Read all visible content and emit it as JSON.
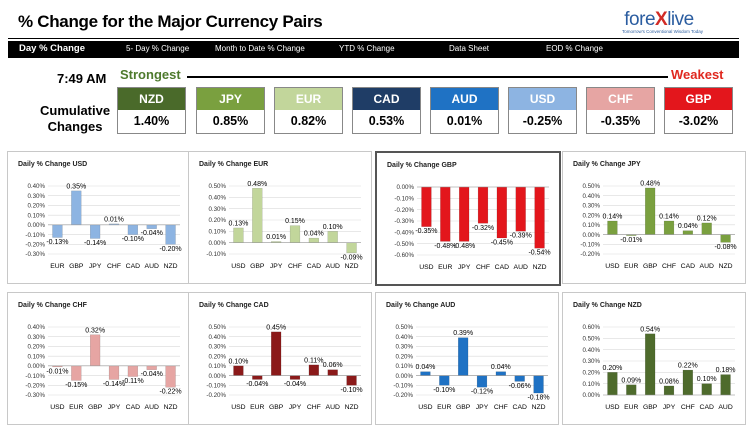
{
  "header": {
    "title": "% Change for the Major Currency Pairs",
    "logo_main_left": "fore",
    "logo_main_x": "X",
    "logo_main_right": "live",
    "logo_sub": "Tomorrow's Conventional Wisdom Today"
  },
  "nav": [
    "Day % Change",
    "5- Day % Change",
    "Month to Date % Change",
    "YTD % Change",
    "Data Sheet",
    "EOD % Change"
  ],
  "summary": {
    "time": "7:49 AM",
    "strongest": "Strongest",
    "weakest": "Weakest",
    "cumulative_line1": "Cumulative",
    "cumulative_line2": "Changes",
    "currencies": [
      {
        "code": "NZD",
        "value": "1.40%",
        "color": "#4a6a2a"
      },
      {
        "code": "JPY",
        "value": "0.85%",
        "color": "#7aa03f"
      },
      {
        "code": "EUR",
        "value": "0.82%",
        "color": "#c2d69b"
      },
      {
        "code": "CAD",
        "value": "0.53%",
        "color": "#1f3d66"
      },
      {
        "code": "AUD",
        "value": "0.01%",
        "color": "#1f72c4"
      },
      {
        "code": "USD",
        "value": "-0.25%",
        "color": "#8db4e2"
      },
      {
        "code": "CHF",
        "value": "-0.35%",
        "color": "#e6a5a3"
      },
      {
        "code": "GBP",
        "value": "-3.02%",
        "color": "#e3161c"
      }
    ]
  },
  "chart_data": [
    {
      "type": "bar",
      "title": "Daily % Change USD",
      "color": "#8db4e2",
      "categories": [
        "EUR",
        "GBP",
        "JPY",
        "CHF",
        "CAD",
        "AUD",
        "NZD"
      ],
      "values": [
        -0.13,
        0.35,
        -0.14,
        0.01,
        -0.1,
        -0.04,
        -0.2
      ],
      "labels": [
        "-0.13%",
        "0.35%",
        "-0.14%",
        "0.01%",
        "-0.10%",
        "-0.04%",
        "-0.20%"
      ],
      "ylim": [
        -0.3,
        0.4
      ],
      "step": 0.1,
      "ticks": [
        "-0.30%",
        "-0.20%",
        "-0.10%",
        "0.00%",
        "0.10%",
        "0.20%",
        "0.30%",
        "0.40%"
      ]
    },
    {
      "type": "bar",
      "title": "Daily % Change EUR",
      "color": "#c2d69b",
      "categories": [
        "USD",
        "GBP",
        "JPY",
        "CHF",
        "CAD",
        "AUD",
        "NZD"
      ],
      "values": [
        0.13,
        0.48,
        0.01,
        0.15,
        0.04,
        0.1,
        -0.09
      ],
      "labels": [
        "0.13%",
        "0.48%",
        "0.01%",
        "0.15%",
        "0.04%",
        "0.10%",
        "-0.09%"
      ],
      "ylim": [
        -0.1,
        0.5
      ],
      "step": 0.1,
      "ticks": [
        "-0.10%",
        "0.00%",
        "0.10%",
        "0.20%",
        "0.30%",
        "0.40%",
        "0.50%"
      ]
    },
    {
      "type": "bar",
      "title": "Daily % Change GBP",
      "color": "#e3161c",
      "categories": [
        "USD",
        "EUR",
        "JPY",
        "CHF",
        "CAD",
        "AUD",
        "NZD"
      ],
      "values": [
        -0.35,
        -0.48,
        -0.48,
        -0.32,
        -0.45,
        -0.39,
        -0.54
      ],
      "labels": [
        "-0.35%",
        "-0.48%",
        "-0.48%",
        "-0.32%",
        "-0.45%",
        "-0.39%",
        "-0.54%"
      ],
      "ylim": [
        -0.6,
        0.0
      ],
      "step": 0.1,
      "ticks": [
        "-0.60%",
        "-0.50%",
        "-0.40%",
        "-0.30%",
        "-0.20%",
        "-0.10%",
        "0.00%"
      ]
    },
    {
      "type": "bar",
      "title": "Daily % Change JPY",
      "color": "#7aa03f",
      "categories": [
        "USD",
        "EUR",
        "GBP",
        "CHF",
        "CAD",
        "AUD",
        "NZD"
      ],
      "values": [
        0.14,
        -0.01,
        0.48,
        0.14,
        0.04,
        0.12,
        -0.08
      ],
      "labels": [
        "0.14%",
        "-0.01%",
        "0.48%",
        "0.14%",
        "0.04%",
        "0.12%",
        "-0.08%"
      ],
      "ylim": [
        -0.2,
        0.5
      ],
      "step": 0.1,
      "ticks": [
        "-0.20%",
        "-0.10%",
        "0.00%",
        "0.10%",
        "0.20%",
        "0.30%",
        "0.40%",
        "0.50%"
      ]
    },
    {
      "type": "bar",
      "title": "Daily % Change CHF",
      "color": "#e6a5a3",
      "categories": [
        "USD",
        "EUR",
        "GBP",
        "JPY",
        "CAD",
        "AUD",
        "NZD"
      ],
      "values": [
        -0.01,
        -0.15,
        0.32,
        -0.14,
        -0.11,
        -0.04,
        -0.22
      ],
      "labels": [
        "-0.01%",
        "-0.15%",
        "0.32%",
        "-0.14%",
        "-0.11%",
        "-0.04%",
        "-0.22%"
      ],
      "ylim": [
        -0.3,
        0.4
      ],
      "step": 0.1,
      "ticks": [
        "-0.30%",
        "-0.20%",
        "-0.10%",
        "0.00%",
        "0.10%",
        "0.20%",
        "0.30%",
        "0.40%"
      ]
    },
    {
      "type": "bar",
      "title": "Daily % Change CAD",
      "color": "#8b1a1a",
      "categories": [
        "USD",
        "EUR",
        "GBP",
        "JPY",
        "CHF",
        "AUD",
        "NZD"
      ],
      "values": [
        0.1,
        -0.04,
        0.45,
        -0.04,
        0.11,
        0.06,
        -0.1
      ],
      "labels": [
        "0.10%",
        "-0.04%",
        "0.45%",
        "-0.04%",
        "0.11%",
        "0.06%",
        "-0.10%"
      ],
      "ylim": [
        -0.2,
        0.5
      ],
      "step": 0.1,
      "ticks": [
        "-0.20%",
        "-0.10%",
        "0.00%",
        "0.10%",
        "0.20%",
        "0.30%",
        "0.40%",
        "0.50%"
      ]
    },
    {
      "type": "bar",
      "title": "Daily % Change AUD",
      "color": "#1f72c4",
      "categories": [
        "USD",
        "EUR",
        "GBP",
        "JPY",
        "CHF",
        "CAD",
        "NZD"
      ],
      "values": [
        0.04,
        -0.1,
        0.39,
        -0.12,
        0.04,
        -0.06,
        -0.18
      ],
      "labels": [
        "0.04%",
        "-0.10%",
        "0.39%",
        "-0.12%",
        "0.04%",
        "-0.06%",
        "-0.18%"
      ],
      "ylim": [
        -0.2,
        0.5
      ],
      "step": 0.1,
      "ticks": [
        "-0.20%",
        "-0.10%",
        "0.00%",
        "0.10%",
        "0.20%",
        "0.30%",
        "0.40%",
        "0.50%"
      ]
    },
    {
      "type": "bar",
      "title": "Daily % Change NZD",
      "color": "#4e6b2c",
      "categories": [
        "USD",
        "EUR",
        "GBP",
        "JPY",
        "CHF",
        "CAD",
        "AUD"
      ],
      "values": [
        0.2,
        0.09,
        0.54,
        0.08,
        0.22,
        0.1,
        0.18
      ],
      "labels": [
        "0.20%",
        "0.09%",
        "0.54%",
        "0.08%",
        "0.22%",
        "0.10%",
        "0.18%"
      ],
      "ylim": [
        0.0,
        0.6
      ],
      "step": 0.1,
      "ticks": [
        "0.00%",
        "0.10%",
        "0.20%",
        "0.30%",
        "0.40%",
        "0.50%",
        "0.60%"
      ]
    }
  ]
}
